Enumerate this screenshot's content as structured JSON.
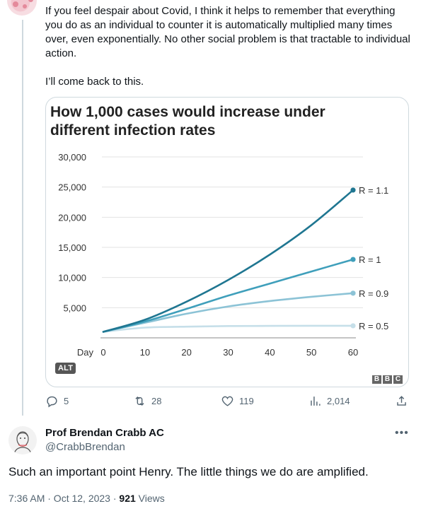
{
  "tweet": {
    "text_p1": "If you feel despair about Covid, I think it helps to remember that everything you do as an individual to counter it is automatically multiplied many times over, even exponentially. No other social problem is that tractable to individual action.",
    "text_p2": "I’ll come back to this.",
    "alt_label": "ALT",
    "bbc_letters": [
      "B",
      "B",
      "C"
    ]
  },
  "actions": {
    "replies": "5",
    "retweets": "28",
    "likes": "119",
    "views": "2,014"
  },
  "reply": {
    "name": "Prof Brendan Crabb AC",
    "handle": "@CrabbBrendan",
    "text": "Such an important point Henry. The little things we do are amplified.",
    "time": "7:36 AM · Oct 12, 2023 · ",
    "views_count": "921",
    "views_label": " Views"
  },
  "chart_data": {
    "type": "line",
    "title": "How 1,000 cases would increase under different infection rates",
    "xlabel": "Day",
    "x_ticks": [
      0,
      10,
      20,
      30,
      40,
      50,
      60
    ],
    "y_ticks": [
      5000,
      10000,
      15000,
      20000,
      25000,
      30000
    ],
    "y_tick_labels": [
      "5,000",
      "10,000",
      "15,000",
      "20,000",
      "25,000",
      "30,000"
    ],
    "xlim": [
      0,
      60
    ],
    "ylim": [
      0,
      30000
    ],
    "grid": "horizontal",
    "series": [
      {
        "name": "R = 1.1",
        "color": "#1f7691",
        "x": [
          0,
          10,
          20,
          30,
          40,
          50,
          60
        ],
        "values": [
          1000,
          3000,
          6000,
          9600,
          13800,
          18700,
          24500
        ]
      },
      {
        "name": "R = 1",
        "color": "#3f9fbb",
        "x": [
          0,
          10,
          20,
          30,
          40,
          50,
          60
        ],
        "values": [
          1000,
          2700,
          4800,
          7000,
          9000,
          11000,
          13000
        ]
      },
      {
        "name": "R = 0.9",
        "color": "#8cc3d6",
        "x": [
          0,
          10,
          20,
          30,
          40,
          50,
          60
        ],
        "values": [
          1000,
          2500,
          4000,
          5200,
          6100,
          6800,
          7400
        ]
      },
      {
        "name": "R = 0.5",
        "color": "#c6dfe9",
        "x": [
          0,
          10,
          20,
          30,
          40,
          50,
          60
        ],
        "values": [
          1000,
          1700,
          1850,
          1950,
          1980,
          2000,
          2000
        ]
      }
    ]
  }
}
